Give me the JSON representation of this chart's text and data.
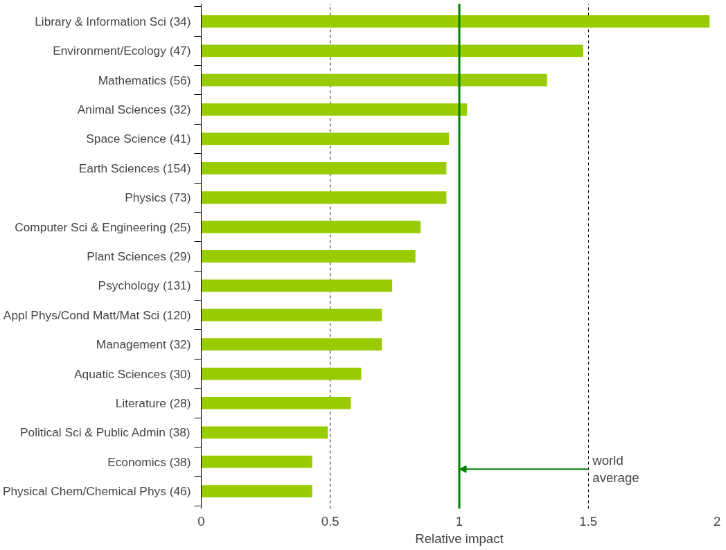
{
  "chart_data": {
    "type": "bar",
    "orientation": "horizontal",
    "xlabel": "Relative impact",
    "categories": [
      "Library & Information Sci (34)",
      "Environment/Ecology (47)",
      "Mathematics (56)",
      "Animal Sciences (32)",
      "Space Science (41)",
      "Earth Sciences (154)",
      "Physics (73)",
      "Computer Sci & Engineering (25)",
      "Plant Sciences (29)",
      "Psychology (131)",
      "Appl Phys/Cond Matt/Mat Sci (120)",
      "Management (32)",
      "Aquatic Sciences (30)",
      "Literature (28)",
      "Political Sci & Public Admin (38)",
      "Economics (38)",
      "Physical Chem/Chemical Phys (46)"
    ],
    "values": [
      1.97,
      1.48,
      1.34,
      1.03,
      0.96,
      0.95,
      0.95,
      0.85,
      0.83,
      0.74,
      0.7,
      0.7,
      0.62,
      0.58,
      0.49,
      0.43,
      0.43
    ],
    "color": "#99cc00",
    "xlim": [
      0,
      2
    ],
    "xticks": [
      0,
      0.5,
      1,
      1.5,
      2
    ],
    "grid": "x",
    "ref_lines": [
      {
        "axis": "x",
        "value": 1,
        "color": "#008000"
      }
    ],
    "annotations": [
      {
        "text": "world average",
        "x": 1
      }
    ]
  }
}
